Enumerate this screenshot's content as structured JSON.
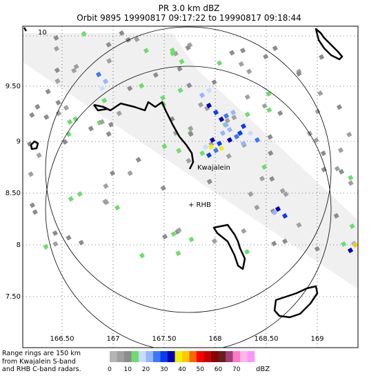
{
  "header": {
    "title": "PR  3.0 km dBZ",
    "subtitle": "Orbit 9895 19990817 09:17:22 to 19990817 09:18:44"
  },
  "axes": {
    "lat_ticks": [
      "10",
      "9.50",
      "9",
      "8.50",
      "8",
      "7.50"
    ],
    "lon_ticks": [
      "166.50",
      "167",
      "167.50",
      "168",
      "168.50",
      "169"
    ]
  },
  "labels": {
    "kwajalein": "Kwajalein",
    "rhb": "+ RHB"
  },
  "footer": {
    "note_line1": "Range rings are 150 km",
    "note_line2": "from Kwajalein S-band",
    "note_line3": "and RHB C-band radars."
  },
  "colorbar": {
    "unit": "dBZ",
    "tick_labels": [
      "0",
      "10",
      "20",
      "30",
      "40",
      "50",
      "60",
      "70"
    ],
    "colors": [
      "#b4b4b4",
      "#a0a0a0",
      "#8c8c8c",
      "#6edc6e",
      "#c8dcff",
      "#96b4ff",
      "#3c78ff",
      "#0a3cf0",
      "#0000b4",
      "#f0f000",
      "#ffc800",
      "#ff6400",
      "#ff0000",
      "#c80000",
      "#8c0000",
      "#641e1e",
      "#a03c78",
      "#ff78c8",
      "#ffb4e6",
      "#ff96ff"
    ],
    "swath_color": "#f0f0f0",
    "frame_color": "#000000"
  }
}
